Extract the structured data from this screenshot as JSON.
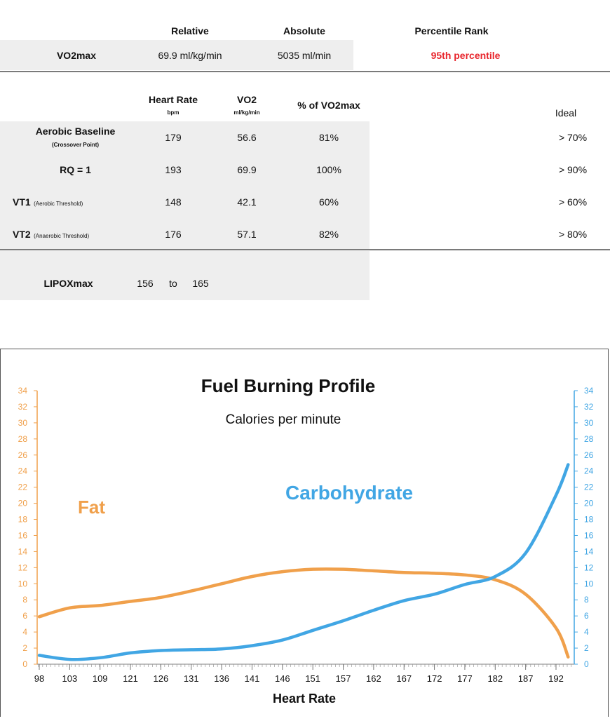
{
  "vo2max_table": {
    "col_relative": "Relative",
    "col_absolute": "Absolute",
    "col_percentile": "Percentile Rank",
    "row_label": "VO2max",
    "relative": "69.9 ml/kg/min",
    "absolute": "5035 ml/min",
    "percentile": "95th percentile",
    "percentile_color": "#e8262d"
  },
  "thresholds_table": {
    "col_hr": "Heart Rate",
    "col_hr_unit": "bpm",
    "col_vo2": "VO2",
    "col_vo2_unit": "ml/kg/min",
    "col_pct": "% of VO2max",
    "col_ideal": "Ideal",
    "rows": [
      {
        "label": "Aerobic Baseline",
        "sublabel": "(Crossover Point)",
        "hr": "179",
        "vo2": "56.6",
        "pct": "81%",
        "ideal": "> 70%"
      },
      {
        "label": "RQ = 1",
        "sublabel": "",
        "hr": "193",
        "vo2": "69.9",
        "pct": "100%",
        "ideal": "> 90%"
      },
      {
        "label": "VT1",
        "sublabel": "(Aerobic Threshold)",
        "hr": "148",
        "vo2": "42.1",
        "pct": "60%",
        "ideal": "> 60%"
      },
      {
        "label": "VT2",
        "sublabel": "(Anaerobic Threshold)",
        "hr": "176",
        "vo2": "57.1",
        "pct": "82%",
        "ideal": "> 80%"
      }
    ]
  },
  "lipox": {
    "label": "LIPOXmax",
    "from": "156",
    "to_word": "to",
    "to": "165"
  },
  "chart_data": {
    "type": "line",
    "title": "Fuel Burning Profile",
    "subtitle": "Calories per minute",
    "xlabel": "Heart Rate",
    "x_ticks": [
      "98",
      "103",
      "109",
      "121",
      "126",
      "131",
      "136",
      "141",
      "146",
      "151",
      "157",
      "162",
      "167",
      "172",
      "177",
      "182",
      "187",
      "192"
    ],
    "ylim": [
      0,
      34
    ],
    "y_ticks": [
      0,
      2,
      4,
      6,
      8,
      10,
      12,
      14,
      16,
      18,
      20,
      22,
      24,
      26,
      28,
      30,
      32,
      34
    ],
    "grid": false,
    "series": [
      {
        "name": "Fat",
        "color": "#f0a04b",
        "x": [
          98,
          103,
          109,
          121,
          126,
          131,
          136,
          141,
          146,
          151,
          157,
          162,
          167,
          172,
          177,
          182,
          187,
          192,
          194
        ],
        "values": [
          5.9,
          7.0,
          7.3,
          7.8,
          8.3,
          9.1,
          10.0,
          10.9,
          11.5,
          11.8,
          11.8,
          11.6,
          11.4,
          11.3,
          11.1,
          10.5,
          8.7,
          4.5,
          0.9
        ]
      },
      {
        "name": "Carbohydrate",
        "color": "#41a6e4",
        "x": [
          98,
          103,
          109,
          121,
          126,
          131,
          136,
          141,
          146,
          151,
          157,
          162,
          167,
          172,
          177,
          182,
          187,
          192,
          194
        ],
        "values": [
          1.1,
          0.6,
          0.8,
          1.4,
          1.7,
          1.8,
          1.9,
          2.3,
          3.0,
          4.2,
          5.4,
          6.7,
          7.9,
          8.7,
          9.9,
          10.9,
          13.8,
          21.0,
          24.8
        ]
      }
    ]
  }
}
